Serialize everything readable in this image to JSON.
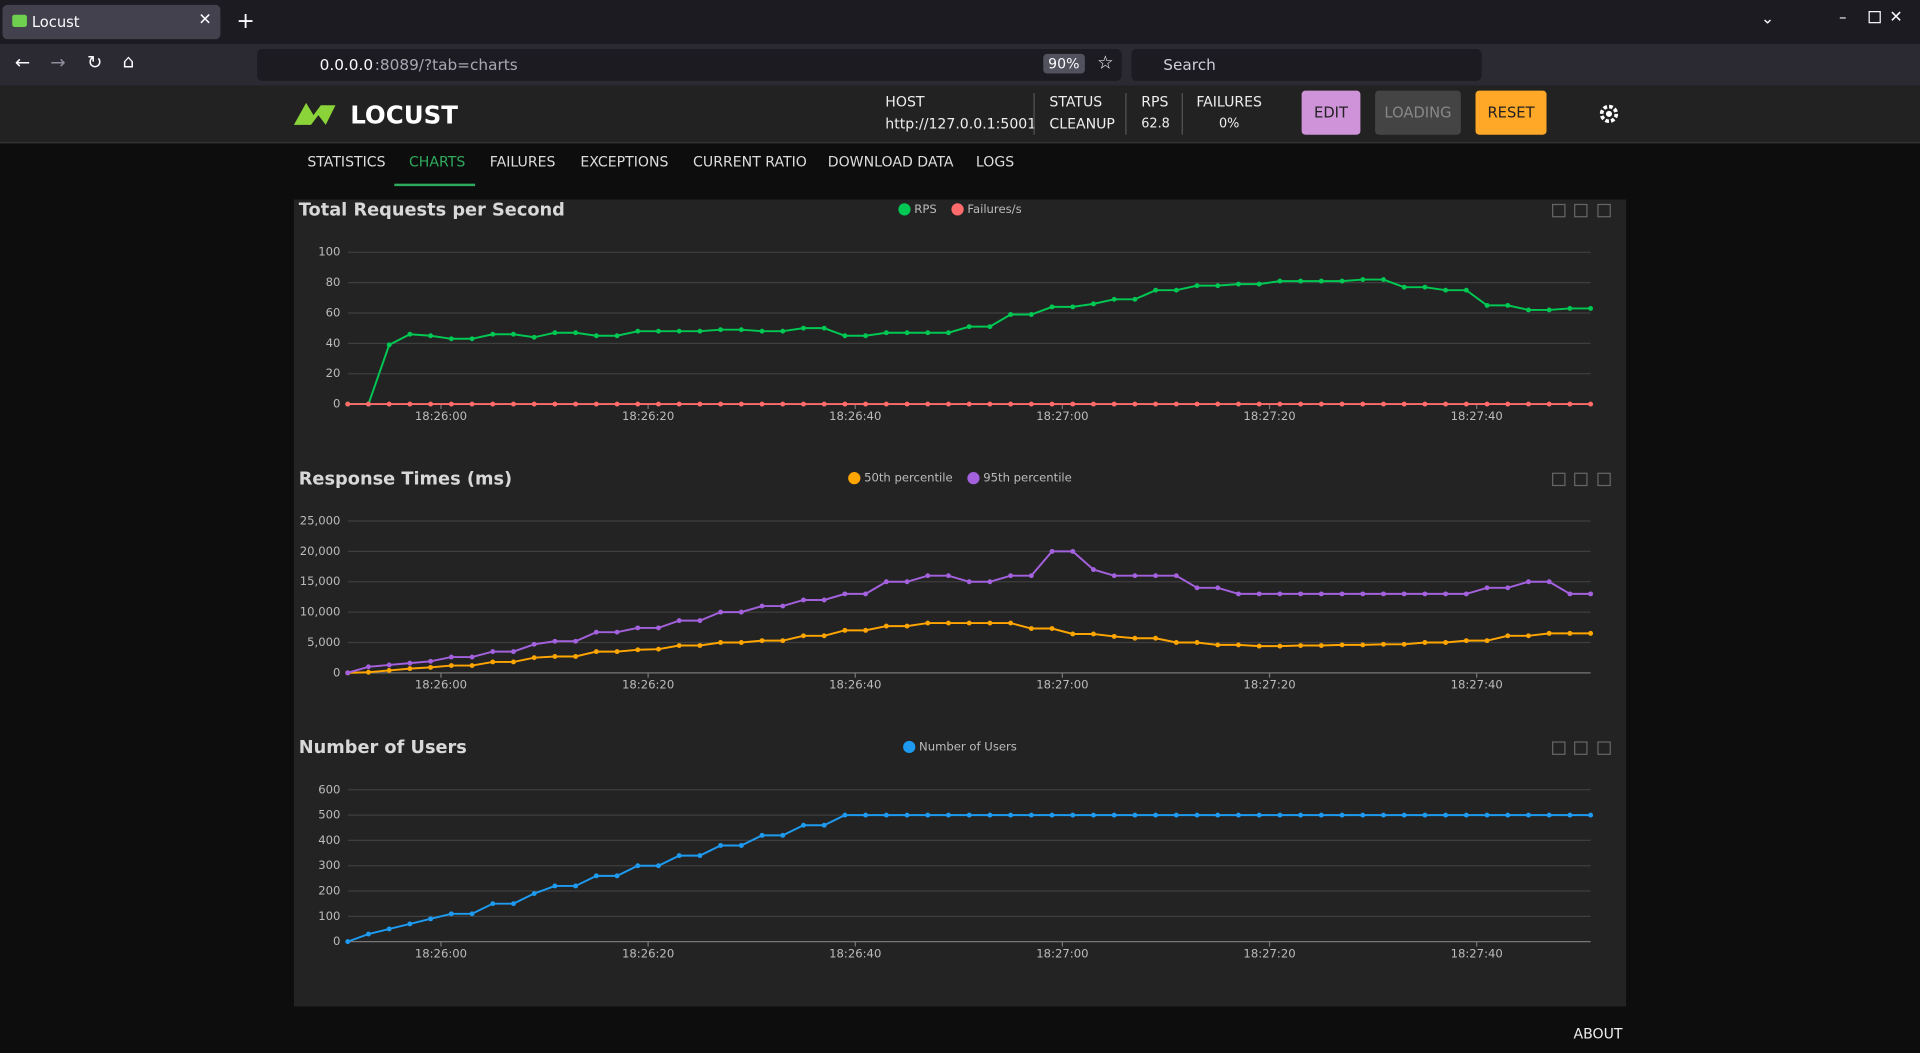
{
  "browser": {
    "tab_title": "Locust",
    "url_host": "0.0.0.0",
    "url_rest": ":8089/?tab=charts",
    "zoom": "90%",
    "search_placeholder": "Search"
  },
  "header": {
    "logo": "LOCUST",
    "stats": [
      {
        "label": "HOST",
        "value": "http://127.0.0.1:5001"
      },
      {
        "label": "STATUS",
        "value": "CLEANUP"
      },
      {
        "label": "RPS",
        "value": "62.8"
      },
      {
        "label": "FAILURES",
        "value": "0%"
      }
    ],
    "buttons": [
      "EDIT",
      "LOADING",
      "RESET"
    ]
  },
  "tabs": [
    "STATISTICS",
    "CHARTS",
    "FAILURES",
    "EXCEPTIONS",
    "CURRENT RATIO",
    "DOWNLOAD DATA",
    "LOGS"
  ],
  "footer": {
    "about": "ABOUT"
  },
  "chart_data": [
    {
      "type": "line",
      "title": "Total Requests per Second",
      "x": [
        "18:25:51",
        "18:25:53",
        "18:25:55",
        "18:25:57",
        "18:25:59",
        "18:26:01",
        "18:26:03",
        "18:26:05",
        "18:26:07",
        "18:26:09",
        "18:26:11",
        "18:26:13",
        "18:26:15",
        "18:26:17",
        "18:26:19",
        "18:26:21",
        "18:26:23",
        "18:26:25",
        "18:26:27",
        "18:26:29",
        "18:26:31",
        "18:26:33",
        "18:26:35",
        "18:26:37",
        "18:26:39",
        "18:26:41",
        "18:26:43",
        "18:26:45",
        "18:26:47",
        "18:26:49",
        "18:26:51",
        "18:26:53",
        "18:26:55",
        "18:26:57",
        "18:26:59",
        "18:27:01",
        "18:27:03",
        "18:27:05",
        "18:27:07",
        "18:27:09",
        "18:27:11",
        "18:27:13",
        "18:27:15",
        "18:27:17",
        "18:27:19",
        "18:27:21",
        "18:27:23",
        "18:27:25",
        "18:27:27",
        "18:27:29",
        "18:27:31",
        "18:27:33",
        "18:27:35",
        "18:27:37",
        "18:27:39",
        "18:27:41",
        "18:27:43",
        "18:27:45",
        "18:27:47",
        "18:27:49",
        "18:27:51"
      ],
      "xlim": [
        "18:25:51",
        "18:27:51"
      ],
      "xticks": [
        "18:26:00",
        "18:26:20",
        "18:26:40",
        "18:27:00",
        "18:27:20",
        "18:27:40"
      ],
      "ylim": [
        0,
        100
      ],
      "yticks": [
        0,
        20,
        40,
        60,
        80,
        100
      ],
      "grid": true,
      "series": [
        {
          "name": "RPS",
          "color": "#00c853",
          "values": [
            0,
            0,
            39,
            46,
            45,
            43,
            43,
            46,
            46,
            44,
            47,
            47,
            45,
            45,
            48,
            48,
            48,
            48,
            49,
            49,
            48,
            48,
            50,
            50,
            45,
            45,
            47,
            47,
            47,
            47,
            51,
            51,
            59,
            59,
            64,
            64,
            66,
            69,
            69,
            75,
            75,
            78,
            78,
            79,
            79,
            81,
            81,
            81,
            81,
            82,
            82,
            77,
            77,
            75,
            75,
            65,
            65,
            62,
            62,
            63,
            63
          ]
        },
        {
          "name": "Failures/s",
          "color": "#ff6b6b",
          "values": [
            0,
            0,
            0,
            0,
            0,
            0,
            0,
            0,
            0,
            0,
            0,
            0,
            0,
            0,
            0,
            0,
            0,
            0,
            0,
            0,
            0,
            0,
            0,
            0,
            0,
            0,
            0,
            0,
            0,
            0,
            0,
            0,
            0,
            0,
            0,
            0,
            0,
            0,
            0,
            0,
            0,
            0,
            0,
            0,
            0,
            0,
            0,
            0,
            0,
            0,
            0,
            0,
            0,
            0,
            0,
            0,
            0,
            0,
            0,
            0,
            0
          ]
        }
      ]
    },
    {
      "type": "line",
      "title": "Response Times (ms)",
      "x": [
        "18:25:51",
        "18:25:53",
        "18:25:55",
        "18:25:57",
        "18:25:59",
        "18:26:01",
        "18:26:03",
        "18:26:05",
        "18:26:07",
        "18:26:09",
        "18:26:11",
        "18:26:13",
        "18:26:15",
        "18:26:17",
        "18:26:19",
        "18:26:21",
        "18:26:23",
        "18:26:25",
        "18:26:27",
        "18:26:29",
        "18:26:31",
        "18:26:33",
        "18:26:35",
        "18:26:37",
        "18:26:39",
        "18:26:41",
        "18:26:43",
        "18:26:45",
        "18:26:47",
        "18:26:49",
        "18:26:51",
        "18:26:53",
        "18:26:55",
        "18:26:57",
        "18:26:59",
        "18:27:01",
        "18:27:03",
        "18:27:05",
        "18:27:07",
        "18:27:09",
        "18:27:11",
        "18:27:13",
        "18:27:15",
        "18:27:17",
        "18:27:19",
        "18:27:21",
        "18:27:23",
        "18:27:25",
        "18:27:27",
        "18:27:29",
        "18:27:31",
        "18:27:33",
        "18:27:35",
        "18:27:37",
        "18:27:39",
        "18:27:41",
        "18:27:43",
        "18:27:45",
        "18:27:47",
        "18:27:49",
        "18:27:51"
      ],
      "xlim": [
        "18:25:51",
        "18:27:51"
      ],
      "xticks": [
        "18:26:00",
        "18:26:20",
        "18:26:40",
        "18:27:00",
        "18:27:20",
        "18:27:40"
      ],
      "ylim": [
        0,
        25000
      ],
      "yticks": [
        0,
        {
          "value": 5000,
          "label": "5,000"
        },
        {
          "value": 10000,
          "label": "10,000"
        },
        {
          "value": 15000,
          "label": "15,000"
        },
        {
          "value": 20000,
          "label": "20,000"
        },
        {
          "value": 25000,
          "label": "25,000"
        }
      ],
      "grid": true,
      "series": [
        {
          "name": "50th percentile",
          "color": "#ffa500",
          "values": [
            0,
            100,
            400,
            700,
            900,
            1200,
            1200,
            1800,
            1800,
            2500,
            2700,
            2700,
            3500,
            3500,
            3800,
            3900,
            4500,
            4500,
            5000,
            5000,
            5300,
            5300,
            6100,
            6100,
            7000,
            7000,
            7700,
            7700,
            8200,
            8200,
            8200,
            8200,
            8200,
            7300,
            7300,
            6400,
            6400,
            6000,
            5700,
            5700,
            5000,
            5000,
            4600,
            4600,
            4400,
            4400,
            4500,
            4500,
            4600,
            4600,
            4700,
            4700,
            5000,
            5000,
            5300,
            5300,
            6100,
            6100,
            6500,
            6500,
            6500
          ]
        },
        {
          "name": "95th percentile",
          "color": "#a361dd",
          "values": [
            0,
            1000,
            1300,
            1600,
            1900,
            2600,
            2600,
            3500,
            3500,
            4700,
            5200,
            5200,
            6700,
            6700,
            7400,
            7400,
            8600,
            8600,
            10000,
            10000,
            11000,
            11000,
            12000,
            12000,
            13000,
            13000,
            15000,
            15000,
            16000,
            16000,
            15000,
            15000,
            16000,
            16000,
            20000,
            20000,
            17000,
            16000,
            16000,
            16000,
            16000,
            14000,
            14000,
            13000,
            13000,
            13000,
            13000,
            13000,
            13000,
            13000,
            13000,
            13000,
            13000,
            13000,
            13000,
            14000,
            14000,
            15000,
            15000,
            13000,
            13000
          ]
        }
      ]
    },
    {
      "type": "line",
      "title": "Number of Users",
      "x": [
        "18:25:51",
        "18:25:53",
        "18:25:55",
        "18:25:57",
        "18:25:59",
        "18:26:01",
        "18:26:03",
        "18:26:05",
        "18:26:07",
        "18:26:09",
        "18:26:11",
        "18:26:13",
        "18:26:15",
        "18:26:17",
        "18:26:19",
        "18:26:21",
        "18:26:23",
        "18:26:25",
        "18:26:27",
        "18:26:29",
        "18:26:31",
        "18:26:33",
        "18:26:35",
        "18:26:37",
        "18:26:39",
        "18:26:41",
        "18:26:43",
        "18:26:45",
        "18:26:47",
        "18:26:49",
        "18:26:51",
        "18:26:53",
        "18:26:55",
        "18:26:57",
        "18:26:59",
        "18:27:01",
        "18:27:03",
        "18:27:05",
        "18:27:07",
        "18:27:09",
        "18:27:11",
        "18:27:13",
        "18:27:15",
        "18:27:17",
        "18:27:19",
        "18:27:21",
        "18:27:23",
        "18:27:25",
        "18:27:27",
        "18:27:29",
        "18:27:31",
        "18:27:33",
        "18:27:35",
        "18:27:37",
        "18:27:39",
        "18:27:41",
        "18:27:43",
        "18:27:45",
        "18:27:47",
        "18:27:49",
        "18:27:51"
      ],
      "xlim": [
        "18:25:51",
        "18:27:51"
      ],
      "xticks": [
        "18:26:00",
        "18:26:20",
        "18:26:40",
        "18:27:00",
        "18:27:20",
        "18:27:40"
      ],
      "ylim": [
        0,
        600
      ],
      "yticks": [
        0,
        100,
        200,
        300,
        400,
        500,
        600
      ],
      "grid": true,
      "series": [
        {
          "name": "Number of Users",
          "color": "#1e9bf0",
          "values": [
            0,
            30,
            50,
            70,
            90,
            110,
            110,
            150,
            150,
            190,
            220,
            220,
            260,
            260,
            300,
            300,
            340,
            340,
            380,
            380,
            420,
            420,
            460,
            460,
            500,
            500,
            500,
            500,
            500,
            500,
            500,
            500,
            500,
            500,
            500,
            500,
            500,
            500,
            500,
            500,
            500,
            500,
            500,
            500,
            500,
            500,
            500,
            500,
            500,
            500,
            500,
            500,
            500,
            500,
            500,
            500,
            500,
            500,
            500,
            500,
            500
          ]
        }
      ]
    }
  ]
}
